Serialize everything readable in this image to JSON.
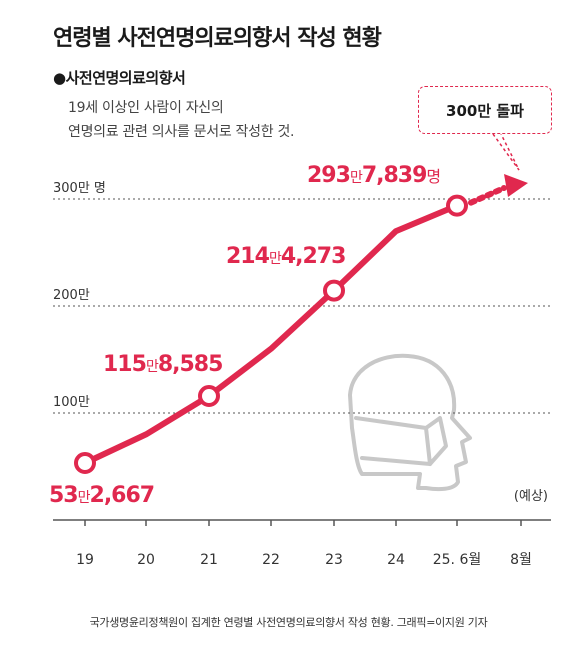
{
  "title": "연령별 사전연명의료의향서 작성 현황",
  "subtitle": "●사전연명의료의향서",
  "description": [
    "19세 이상인 사람이 자신의",
    "연명의료 관련 의사를 문서로 작성한 것."
  ],
  "callout": "300만 돌파",
  "source": "국가생명윤리정책원이 집계한 연령별 사전연명의료의향서 작성 현황. 그래픽=이지원 기자",
  "colors": {
    "accent": "#e0284e",
    "grid": "#555555",
    "axis": "#555555",
    "mask": "#c8c8c8"
  },
  "icon": "face-mask-silhouette",
  "chart_data": {
    "type": "line",
    "categories": [
      "19",
      "20",
      "21",
      "22",
      "23",
      "24",
      "25. 6월",
      "8월"
    ],
    "values": [
      532667,
      800000,
      1158585,
      1600000,
      2144273,
      2700000,
      2937839,
      null
    ],
    "forecast": {
      "from": "25. 6월",
      "to": "8월",
      "value": 3000000,
      "label": "(예상)"
    },
    "point_labels": [
      {
        "category": "19",
        "big": "53",
        "small": "만",
        "rest": "2,667"
      },
      {
        "category": "21",
        "big": "115",
        "small": "만",
        "rest": "8,585"
      },
      {
        "category": "23",
        "big": "214",
        "small": "만",
        "rest": "4,273"
      },
      {
        "category": "25. 6월",
        "big": "293",
        "small": "만",
        "rest": "7,839",
        "suffix": "명"
      }
    ],
    "y_ticks": [
      {
        "value": 1000000,
        "label": "100만"
      },
      {
        "value": 2000000,
        "label": "200만"
      },
      {
        "value": 3000000,
        "label": "300만 명"
      }
    ],
    "ylim": [
      0,
      3000000
    ],
    "grid": true
  }
}
